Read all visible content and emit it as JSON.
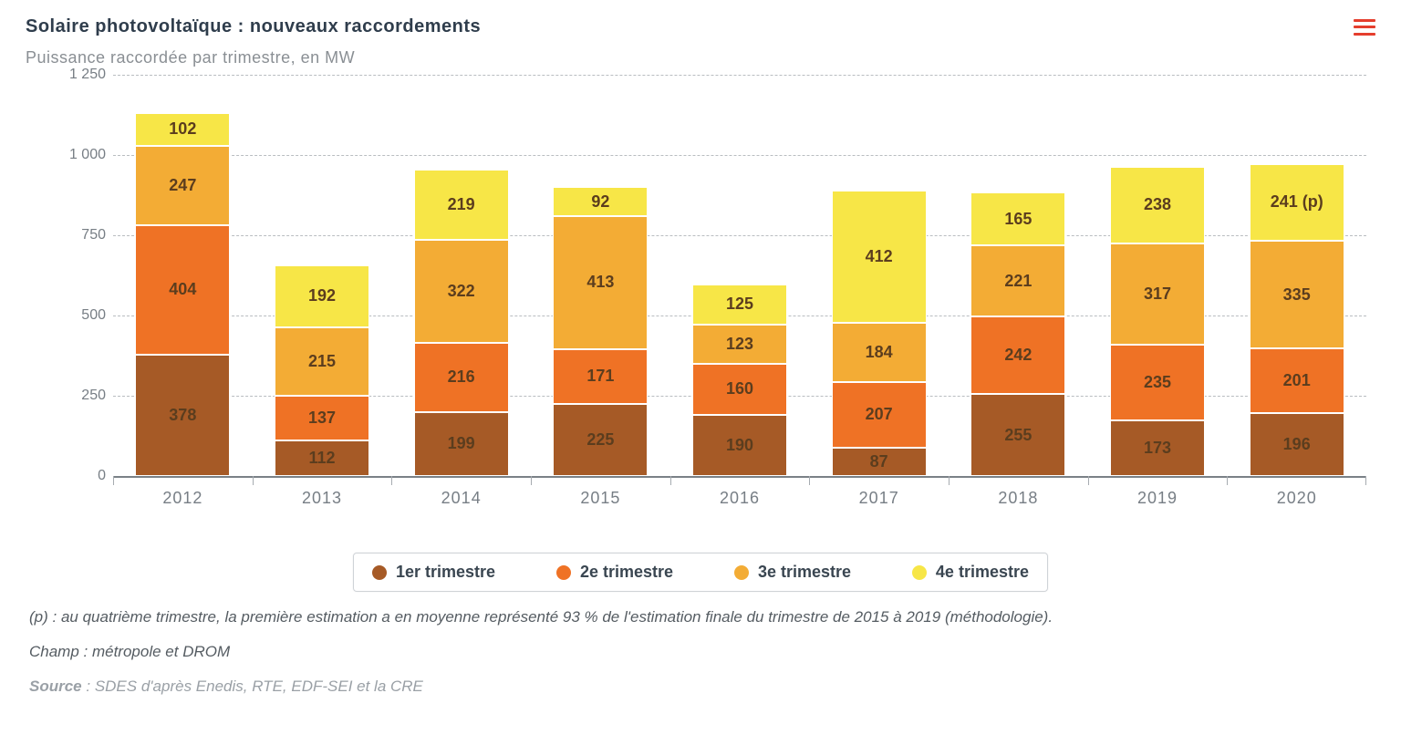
{
  "title": "Solaire photovoltaïque : nouveaux raccordements",
  "subtitle": "Puissance raccordée par trimestre, en MW",
  "menu_icon_name": "hamburger-menu-icon",
  "chart": {
    "type": "stacked-bar",
    "y": {
      "min": 0,
      "max": 1250,
      "step": 250,
      "label": ""
    },
    "grid_color": "#b9bdc1",
    "baseline_color": "#7a8187",
    "background_color": "#ffffff",
    "bar_width_pct": 68,
    "series": [
      {
        "key": "q1",
        "label": "1er trimestre",
        "color": "#a65a26"
      },
      {
        "key": "q2",
        "label": "2e trimestre",
        "color": "#ef7225"
      },
      {
        "key": "q3",
        "label": "3e trimestre",
        "color": "#f3ac35"
      },
      {
        "key": "q4",
        "label": "4e trimestre",
        "color": "#f7e647"
      }
    ],
    "categories": [
      "2012",
      "2013",
      "2014",
      "2015",
      "2016",
      "2017",
      "2018",
      "2019",
      "2020"
    ],
    "data": {
      "q1": [
        378,
        112,
        199,
        225,
        190,
        87,
        255,
        173,
        196
      ],
      "q2": [
        404,
        137,
        216,
        171,
        160,
        207,
        242,
        235,
        201
      ],
      "q3": [
        247,
        215,
        322,
        413,
        123,
        184,
        221,
        317,
        335
      ],
      "q4": [
        102,
        192,
        219,
        92,
        125,
        412,
        165,
        238,
        241
      ]
    },
    "segment_label_overrides": {
      "8": {
        "q4": "241 (p)"
      }
    },
    "label_fontsize": 18,
    "label_color": "#5b3d1e",
    "axis_label_color": "#777e85"
  },
  "footnotes": {
    "p": "(p) : au quatrième trimestre, la première estimation a en moyenne représenté 93 % de l'estimation finale du trimestre de 2015 à 2019 (méthodologie).",
    "champ": "Champ : métropole et DROM",
    "source_label": "Source",
    "source_text": ": SDES d'après Enedis, RTE, EDF-SEI et la CRE"
  }
}
